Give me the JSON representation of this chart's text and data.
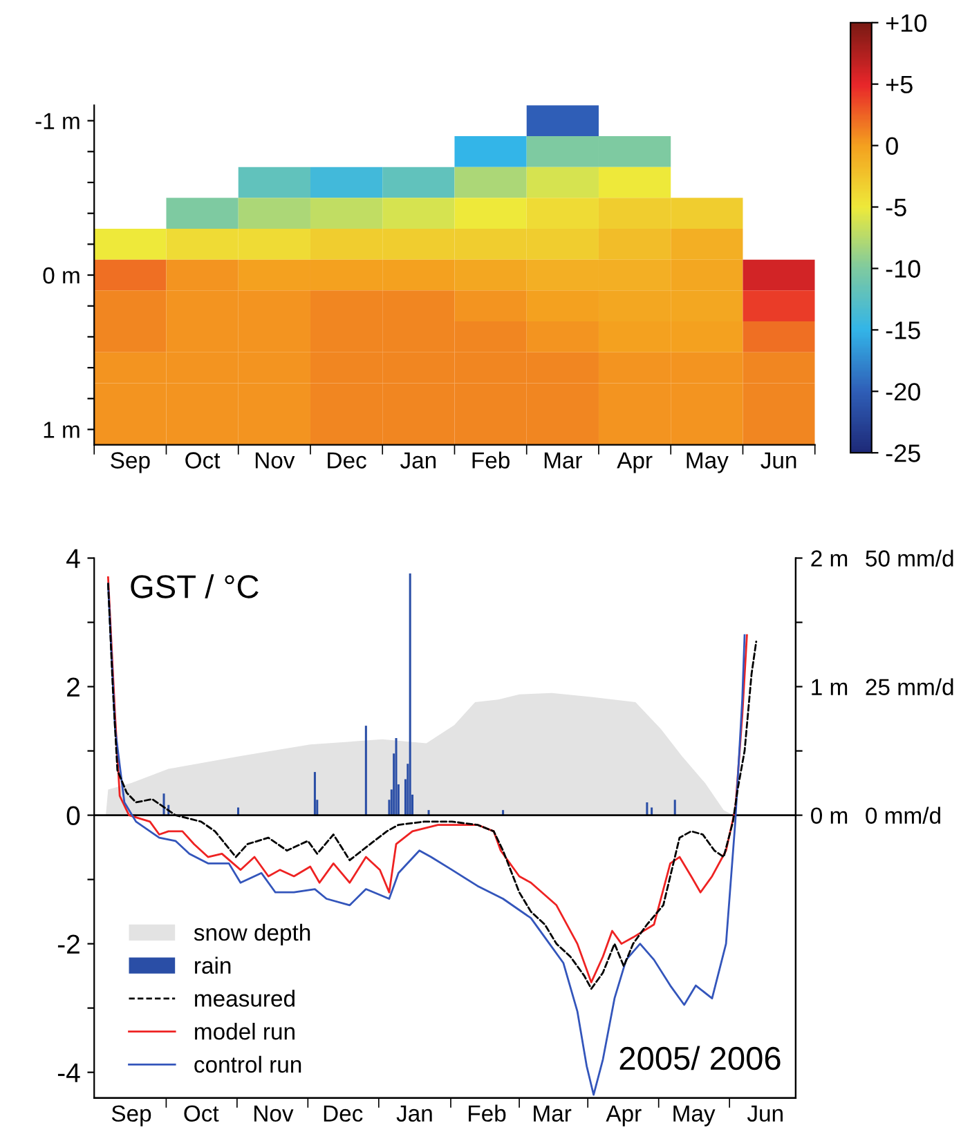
{
  "chart_data": [
    {
      "type": "heatmap",
      "categories": [
        "Sep",
        "Oct",
        "Nov",
        "Dec",
        "Jan",
        "Feb",
        "Mar",
        "Apr",
        "May",
        "Jun"
      ],
      "y_categories": [
        "-1 m",
        null,
        null,
        null,
        null,
        "0 m",
        null,
        null,
        null,
        null,
        "1 m"
      ],
      "cells": [
        [
          null,
          null,
          null,
          null,
          null,
          null,
          -20,
          null,
          null,
          null
        ],
        [
          null,
          null,
          null,
          null,
          null,
          -15,
          -10,
          -10,
          null,
          null
        ],
        [
          null,
          null,
          -12,
          -14,
          -12,
          -8,
          -6,
          -5,
          null,
          null
        ],
        [
          null,
          -10,
          -8,
          -7,
          -6,
          -5,
          -4,
          -3,
          -3,
          null
        ],
        [
          -5,
          -4,
          -4,
          -3,
          -3,
          -3,
          -3,
          -2,
          -1,
          null
        ],
        [
          2,
          0.5,
          0,
          0,
          0,
          -0.5,
          -1,
          -1,
          -0.5,
          6
        ],
        [
          1,
          0.5,
          0.5,
          1,
          1,
          0.5,
          0,
          -0.5,
          -0.5,
          4
        ],
        [
          1,
          0.5,
          0.5,
          1,
          1,
          1,
          0.5,
          0,
          0,
          2
        ],
        [
          0.5,
          0.5,
          0.5,
          1,
          1,
          1,
          1,
          0.5,
          0.5,
          1
        ],
        [
          0.5,
          0.5,
          0.5,
          1,
          1,
          1,
          1,
          0.5,
          0.5,
          1
        ],
        [
          0.5,
          0.5,
          0.5,
          1,
          1,
          1,
          1,
          0.5,
          0.5,
          1
        ]
      ],
      "clim": [
        -25,
        10
      ],
      "cticks": [
        {
          "value": 10,
          "label": "+10"
        },
        {
          "value": 5,
          "label": "+5"
        },
        0,
        -5,
        -10,
        -15,
        -20,
        -25
      ]
    },
    {
      "type": "line",
      "xlim": [
        "2005-08-30",
        "2006-06-28"
      ],
      "xticks": [
        {
          "value": "2005-09-15",
          "label": "Sep"
        },
        {
          "value": "2005-10-15",
          "label": "Oct"
        },
        {
          "value": "2005-11-15",
          "label": "Nov"
        },
        {
          "value": "2005-12-15",
          "label": "Dec"
        },
        {
          "value": "2006-01-15",
          "label": "Jan"
        },
        {
          "value": "2006-02-15",
          "label": "Feb"
        },
        {
          "value": "2006-03-15",
          "label": "Mar"
        },
        {
          "value": "2006-04-15",
          "label": "Apr"
        },
        {
          "value": "2006-05-15",
          "label": "May"
        },
        {
          "value": "2006-06-15",
          "label": "Jun"
        }
      ],
      "ylim": [
        -4.4,
        4
      ],
      "yticks": [
        -4,
        {
          "value": -3,
          "label": null
        },
        -2,
        {
          "value": -1,
          "label": null
        },
        0,
        {
          "value": 1,
          "label": null
        },
        2,
        {
          "value": 3,
          "label": null
        },
        4
      ],
      "y2lim": [
        -2.2,
        2
      ],
      "y2ticks": [
        {
          "value": 0,
          "label": "0 m"
        },
        {
          "value": 0.5,
          "label": null
        },
        {
          "value": 1,
          "label": "1 m"
        },
        {
          "value": 1.5,
          "label": null
        },
        {
          "value": 2,
          "label": "2 m"
        }
      ],
      "y3lim": [
        -55,
        50
      ],
      "y3ticks": [
        {
          "value": 0,
          "label": "0 mm/d"
        },
        {
          "value": 25,
          "label": "25 mm/d"
        },
        {
          "value": 50,
          "label": "50 mm/d"
        }
      ],
      "ylabel": "GST / °C",
      "annotations": [
        "2005/ 2006"
      ],
      "legend": "bottom left",
      "series": [
        {
          "name": "snow depth",
          "type": "area",
          "axis": "y2",
          "color": "#e3e3e3",
          "x": [
            "2005-09-04",
            "2005-09-05",
            "2005-09-15",
            "2005-10-01",
            "2005-11-01",
            "2005-12-01",
            "2006-01-01",
            "2006-01-20",
            "2006-02-01",
            "2006-02-10",
            "2006-02-20",
            "2006-03-01",
            "2006-03-15",
            "2006-04-01",
            "2006-04-20",
            "2006-05-01",
            "2006-05-10",
            "2006-05-20",
            "2006-05-28",
            "2006-06-01"
          ],
          "values": [
            0,
            0.2,
            0.25,
            0.36,
            0.46,
            0.55,
            0.59,
            0.56,
            0.7,
            0.88,
            0.9,
            0.94,
            0.95,
            0.92,
            0.88,
            0.67,
            0.46,
            0.25,
            0.04,
            0
          ]
        },
        {
          "name": "rain",
          "type": "bar",
          "axis": "y3",
          "color": "#2a4ea6",
          "x": [
            "2005-09-29",
            "2005-10-01",
            "2005-10-31",
            "2005-12-03",
            "2005-12-04",
            "2005-12-25",
            "2006-01-04",
            "2006-01-05",
            "2006-01-06",
            "2006-01-07",
            "2006-01-08",
            "2006-01-11",
            "2006-01-12",
            "2006-01-13",
            "2006-01-14",
            "2006-01-21",
            "2006-02-22",
            "2006-04-25",
            "2006-04-27",
            "2006-05-07"
          ],
          "values": [
            4.2,
            2,
            1.5,
            8.4,
            3,
            17.4,
            3,
            5,
            12,
            15,
            6,
            7,
            10,
            47,
            4,
            1,
            1,
            2.5,
            1.5,
            3
          ]
        },
        {
          "name": "measured",
          "type": "line",
          "line_style": "dashed",
          "color": "#000000",
          "x": [
            "2005-09-05",
            "2005-09-07",
            "2005-09-09",
            "2005-09-13",
            "2005-09-17",
            "2005-09-24",
            "2005-09-30",
            "2005-10-04",
            "2005-10-15",
            "2005-10-21",
            "2005-10-30",
            "2005-11-04",
            "2005-11-13",
            "2005-11-21",
            "2005-11-30",
            "2005-12-04",
            "2005-12-11",
            "2005-12-18",
            "2005-12-25",
            "2006-01-03",
            "2006-01-08",
            "2006-01-19",
            "2006-01-31",
            "2006-02-11",
            "2006-02-18",
            "2006-02-22",
            "2006-03-01",
            "2006-03-06",
            "2006-03-12",
            "2006-03-17",
            "2006-03-23",
            "2006-03-29",
            "2006-04-01",
            "2006-04-06",
            "2006-04-11",
            "2006-04-15",
            "2006-04-19",
            "2006-04-25",
            "2006-05-02",
            "2006-05-05",
            "2006-05-09",
            "2006-05-14",
            "2006-05-19",
            "2006-05-24",
            "2006-05-28",
            "2006-06-01",
            "2006-06-03",
            "2006-06-06",
            "2006-06-09",
            "2006-06-11"
          ],
          "values": [
            3.6,
            2.0,
            0.7,
            0.35,
            0.2,
            0.25,
            0.1,
            0,
            -0.1,
            -0.25,
            -0.65,
            -0.45,
            -0.35,
            -0.55,
            -0.4,
            -0.6,
            -0.3,
            -0.7,
            -0.5,
            -0.25,
            -0.15,
            -0.1,
            -0.1,
            -0.15,
            -0.25,
            -0.55,
            -1.2,
            -1.5,
            -1.7,
            -2.0,
            -2.2,
            -2.5,
            -2.7,
            -2.45,
            -2.0,
            -2.35,
            -2.0,
            -1.7,
            -1.4,
            -0.95,
            -0.35,
            -0.25,
            -0.3,
            -0.55,
            -0.65,
            -0.1,
            0.4,
            1.0,
            2.2,
            2.7
          ]
        },
        {
          "name": "model run",
          "type": "line",
          "line_style": "solid",
          "color": "#ee2222",
          "x": [
            "2005-09-05",
            "2005-09-08",
            "2005-09-10",
            "2005-09-14",
            "2005-09-23",
            "2005-09-27",
            "2005-10-01",
            "2005-10-07",
            "2005-10-12",
            "2005-10-18",
            "2005-10-24",
            "2005-11-01",
            "2005-11-07",
            "2005-11-13",
            "2005-11-18",
            "2005-11-24",
            "2005-12-01",
            "2005-12-05",
            "2005-12-11",
            "2005-12-18",
            "2005-12-25",
            "2005-12-31",
            "2006-01-04",
            "2006-01-07",
            "2006-01-14",
            "2006-01-25",
            "2006-02-11",
            "2006-02-18",
            "2006-02-21",
            "2006-03-01",
            "2006-03-06",
            "2006-03-17",
            "2006-03-26",
            "2006-04-01",
            "2006-04-06",
            "2006-04-10",
            "2006-04-14",
            "2006-04-19",
            "2006-04-28",
            "2006-05-05",
            "2006-05-09",
            "2006-05-14",
            "2006-05-18",
            "2006-05-23",
            "2006-05-29",
            "2006-06-02",
            "2006-06-05",
            "2006-06-07"
          ],
          "values": [
            3.7,
            1.55,
            0.3,
            0,
            -0.1,
            -0.3,
            -0.25,
            -0.25,
            -0.45,
            -0.65,
            -0.6,
            -0.85,
            -0.65,
            -0.95,
            -0.85,
            -0.95,
            -0.8,
            -1.05,
            -0.75,
            -1.05,
            -0.65,
            -0.85,
            -1.2,
            -0.45,
            -0.25,
            -0.15,
            -0.15,
            -0.25,
            -0.55,
            -0.95,
            -1.05,
            -1.4,
            -2.0,
            -2.6,
            -2.2,
            -1.8,
            -2.0,
            -1.9,
            -1.7,
            -0.75,
            -0.65,
            -0.95,
            -1.2,
            -0.95,
            -0.55,
            0.1,
            1.55,
            2.8
          ]
        },
        {
          "name": "control run",
          "type": "line",
          "line_style": "solid",
          "color": "#3355bb",
          "x": [
            "2005-09-05",
            "2005-09-08",
            "2005-09-12",
            "2005-09-17",
            "2005-09-27",
            "2005-10-04",
            "2005-10-10",
            "2005-10-18",
            "2005-10-27",
            "2005-11-01",
            "2005-11-10",
            "2005-11-16",
            "2005-11-24",
            "2005-12-03",
            "2005-12-08",
            "2005-12-18",
            "2005-12-25",
            "2006-01-04",
            "2006-01-08",
            "2006-01-17",
            "2006-01-22",
            "2006-01-31",
            "2006-02-11",
            "2006-02-22",
            "2006-03-06",
            "2006-03-14",
            "2006-03-20",
            "2006-03-26",
            "2006-03-30",
            "2006-04-02",
            "2006-04-06",
            "2006-04-11",
            "2006-04-16",
            "2006-04-22",
            "2006-04-28",
            "2006-05-05",
            "2006-05-11",
            "2006-05-16",
            "2006-05-23",
            "2006-05-29",
            "2006-06-02",
            "2006-06-05",
            "2006-06-06"
          ],
          "values": [
            3.6,
            1.35,
            0.2,
            -0.1,
            -0.35,
            -0.4,
            -0.6,
            -0.75,
            -0.75,
            -1.05,
            -0.9,
            -1.2,
            -1.2,
            -1.15,
            -1.3,
            -1.4,
            -1.15,
            -1.3,
            -0.9,
            -0.55,
            -0.65,
            -0.85,
            -1.1,
            -1.3,
            -1.6,
            -2.0,
            -2.3,
            -3.05,
            -3.9,
            -4.35,
            -3.8,
            -2.85,
            -2.25,
            -2.0,
            -2.25,
            -2.65,
            -2.95,
            -2.65,
            -2.85,
            -2.0,
            -0.1,
            1.8,
            2.8
          ]
        }
      ]
    }
  ]
}
